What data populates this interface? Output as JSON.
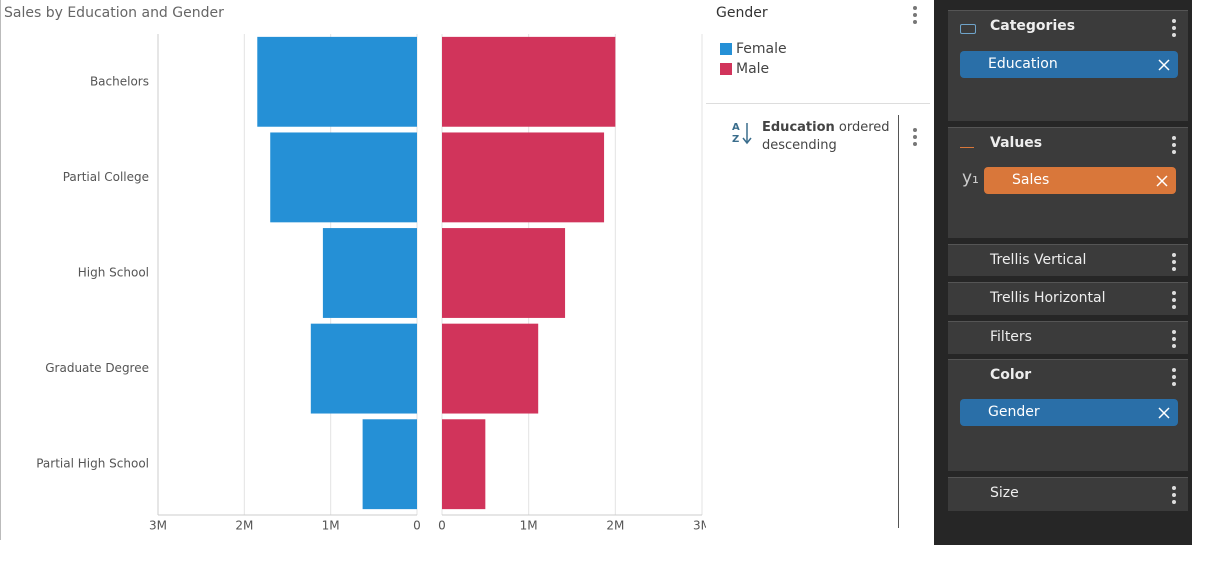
{
  "chart_data": {
    "type": "butterfly",
    "title": "Sales by Education and Gender",
    "categories": [
      "Bachelors",
      "Partial College",
      "High School",
      "Graduate Degree",
      "Partial High School"
    ],
    "series": [
      {
        "name": "Female",
        "color": "#2590d6",
        "values": [
          1850000,
          1700000,
          1090000,
          1230000,
          630000
        ]
      },
      {
        "name": "Male",
        "color": "#d1345b",
        "values": [
          2000000,
          1870000,
          1420000,
          1110000,
          500000
        ]
      }
    ],
    "xlim": [
      0,
      3000000
    ],
    "xticks": [
      0,
      {
        "value": 1000000,
        "label": "1M"
      },
      {
        "value": 2000000,
        "label": "2M"
      },
      {
        "value": 3000000,
        "label": "3M"
      }
    ],
    "grid": true,
    "legend_title": "Gender"
  },
  "sort": {
    "field": "Education",
    "text": "ordered descending"
  },
  "panel": {
    "categories": {
      "title": "Categories",
      "chip": "Education"
    },
    "values": {
      "title": "Values",
      "prefix": "y₁",
      "chip": "Sales"
    },
    "trellis_vertical": {
      "title": "Trellis Vertical"
    },
    "trellis_horizontal": {
      "title": "Trellis Horizontal"
    },
    "filters": {
      "title": "Filters"
    },
    "color": {
      "title": "Color",
      "chip": "Gender"
    },
    "size": {
      "title": "Size"
    }
  }
}
